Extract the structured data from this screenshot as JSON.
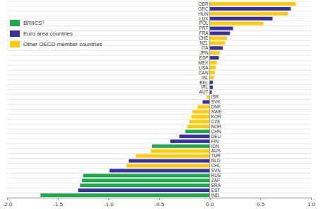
{
  "chart_data": {
    "type": "bar",
    "orientation": "horizontal",
    "categories": [
      "GBR",
      "GRC",
      "HUN",
      "LUX",
      "POL",
      "PRT",
      "FRA",
      "CHE",
      "NZL",
      "ITA",
      "JPN",
      "ESP",
      "MEX",
      "USA",
      "CAN",
      "ISL",
      "BEL",
      "IRL",
      "AUT",
      "ISR",
      "SVK",
      "DNK",
      "SWE",
      "KOR",
      "CZE",
      "NOR",
      "CHN",
      "DEU",
      "FIN",
      "IDN",
      "AUS",
      "TUR",
      "NLD",
      "CHL",
      "SVN",
      "RUS",
      "ZAF",
      "BRA",
      "EST",
      "IND"
    ],
    "series": [
      {
        "name": "BRIICS¹",
        "color": "#1ea84b",
        "values": [
          null,
          null,
          null,
          null,
          null,
          null,
          null,
          null,
          null,
          null,
          null,
          null,
          null,
          null,
          null,
          null,
          null,
          null,
          null,
          null,
          null,
          null,
          null,
          null,
          null,
          null,
          -0.24,
          null,
          null,
          -0.57,
          null,
          null,
          null,
          null,
          null,
          -1.25,
          -1.26,
          -1.28,
          null,
          -1.67
        ]
      },
      {
        "name": "Euro area countries",
        "color": "#3a2f9e",
        "values": [
          null,
          0.8,
          null,
          0.62,
          null,
          0.23,
          0.2,
          null,
          null,
          0.13,
          null,
          0.09,
          null,
          null,
          null,
          null,
          0.03,
          0.03,
          0.02,
          null,
          -0.07,
          null,
          null,
          null,
          null,
          null,
          null,
          -0.3,
          -0.39,
          null,
          null,
          null,
          -0.8,
          null,
          -0.99,
          null,
          null,
          null,
          -1.3,
          null
        ]
      },
      {
        "name": "Other OECD member countries",
        "color": "#ffcc00",
        "values": [
          0.85,
          null,
          0.77,
          null,
          0.53,
          null,
          null,
          0.17,
          0.15,
          null,
          0.1,
          null,
          0.07,
          0.06,
          0.05,
          0.04,
          null,
          null,
          null,
          -0.03,
          null,
          -0.12,
          -0.17,
          -0.18,
          -0.2,
          -0.22,
          null,
          null,
          null,
          null,
          -0.58,
          -0.73,
          null,
          -0.82,
          null,
          null,
          null,
          null,
          null,
          null
        ]
      }
    ],
    "xlim": [
      -2.0,
      1.0
    ],
    "xticks": [
      {
        "value": -2.0,
        "label": "-2.0"
      },
      {
        "value": -1.5,
        "label": "-1.5"
      },
      {
        "value": -1.0,
        "label": "-1.0"
      },
      {
        "value": -0.5,
        "label": "-0.5"
      },
      {
        "value": 0.0,
        "label": "0.0"
      },
      {
        "value": 0.5,
        "label": "0.5"
      },
      {
        "value": 1.0,
        "label": "1.0"
      }
    ],
    "grid": true,
    "legend": "upper left"
  }
}
